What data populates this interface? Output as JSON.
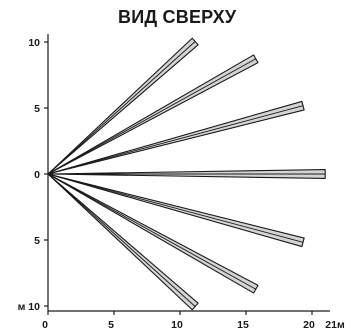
{
  "title": "ВИД СВЕРХУ",
  "colors": {
    "ink": "#1a1a1a",
    "beam_fill": "#d4d4d4"
  },
  "chart_data": {
    "type": "diagram",
    "title": "ВИД СВЕРХУ",
    "x_axis": {
      "range": [
        0,
        21
      ],
      "ticks": [
        0,
        5,
        10,
        15,
        20
      ],
      "tick_labels": [
        "0",
        "5",
        "10",
        "15",
        "20"
      ],
      "end_label": "21м"
    },
    "y_axis": {
      "range": [
        -10,
        10
      ],
      "ticks": [
        10,
        5,
        0,
        -5,
        -10
      ],
      "tick_labels": [
        "10",
        "5",
        "0",
        "5",
        "м 10"
      ]
    },
    "beams": [
      {
        "angle_deg": 42,
        "length_m": 15
      },
      {
        "angle_deg": 29,
        "length_m": 18
      },
      {
        "angle_deg": 15,
        "length_m": 20
      },
      {
        "angle_deg": 0,
        "length_m": 21
      },
      {
        "angle_deg": -15,
        "length_m": 20
      },
      {
        "angle_deg": -29,
        "length_m": 18
      },
      {
        "angle_deg": -42,
        "length_m": 15
      }
    ]
  }
}
